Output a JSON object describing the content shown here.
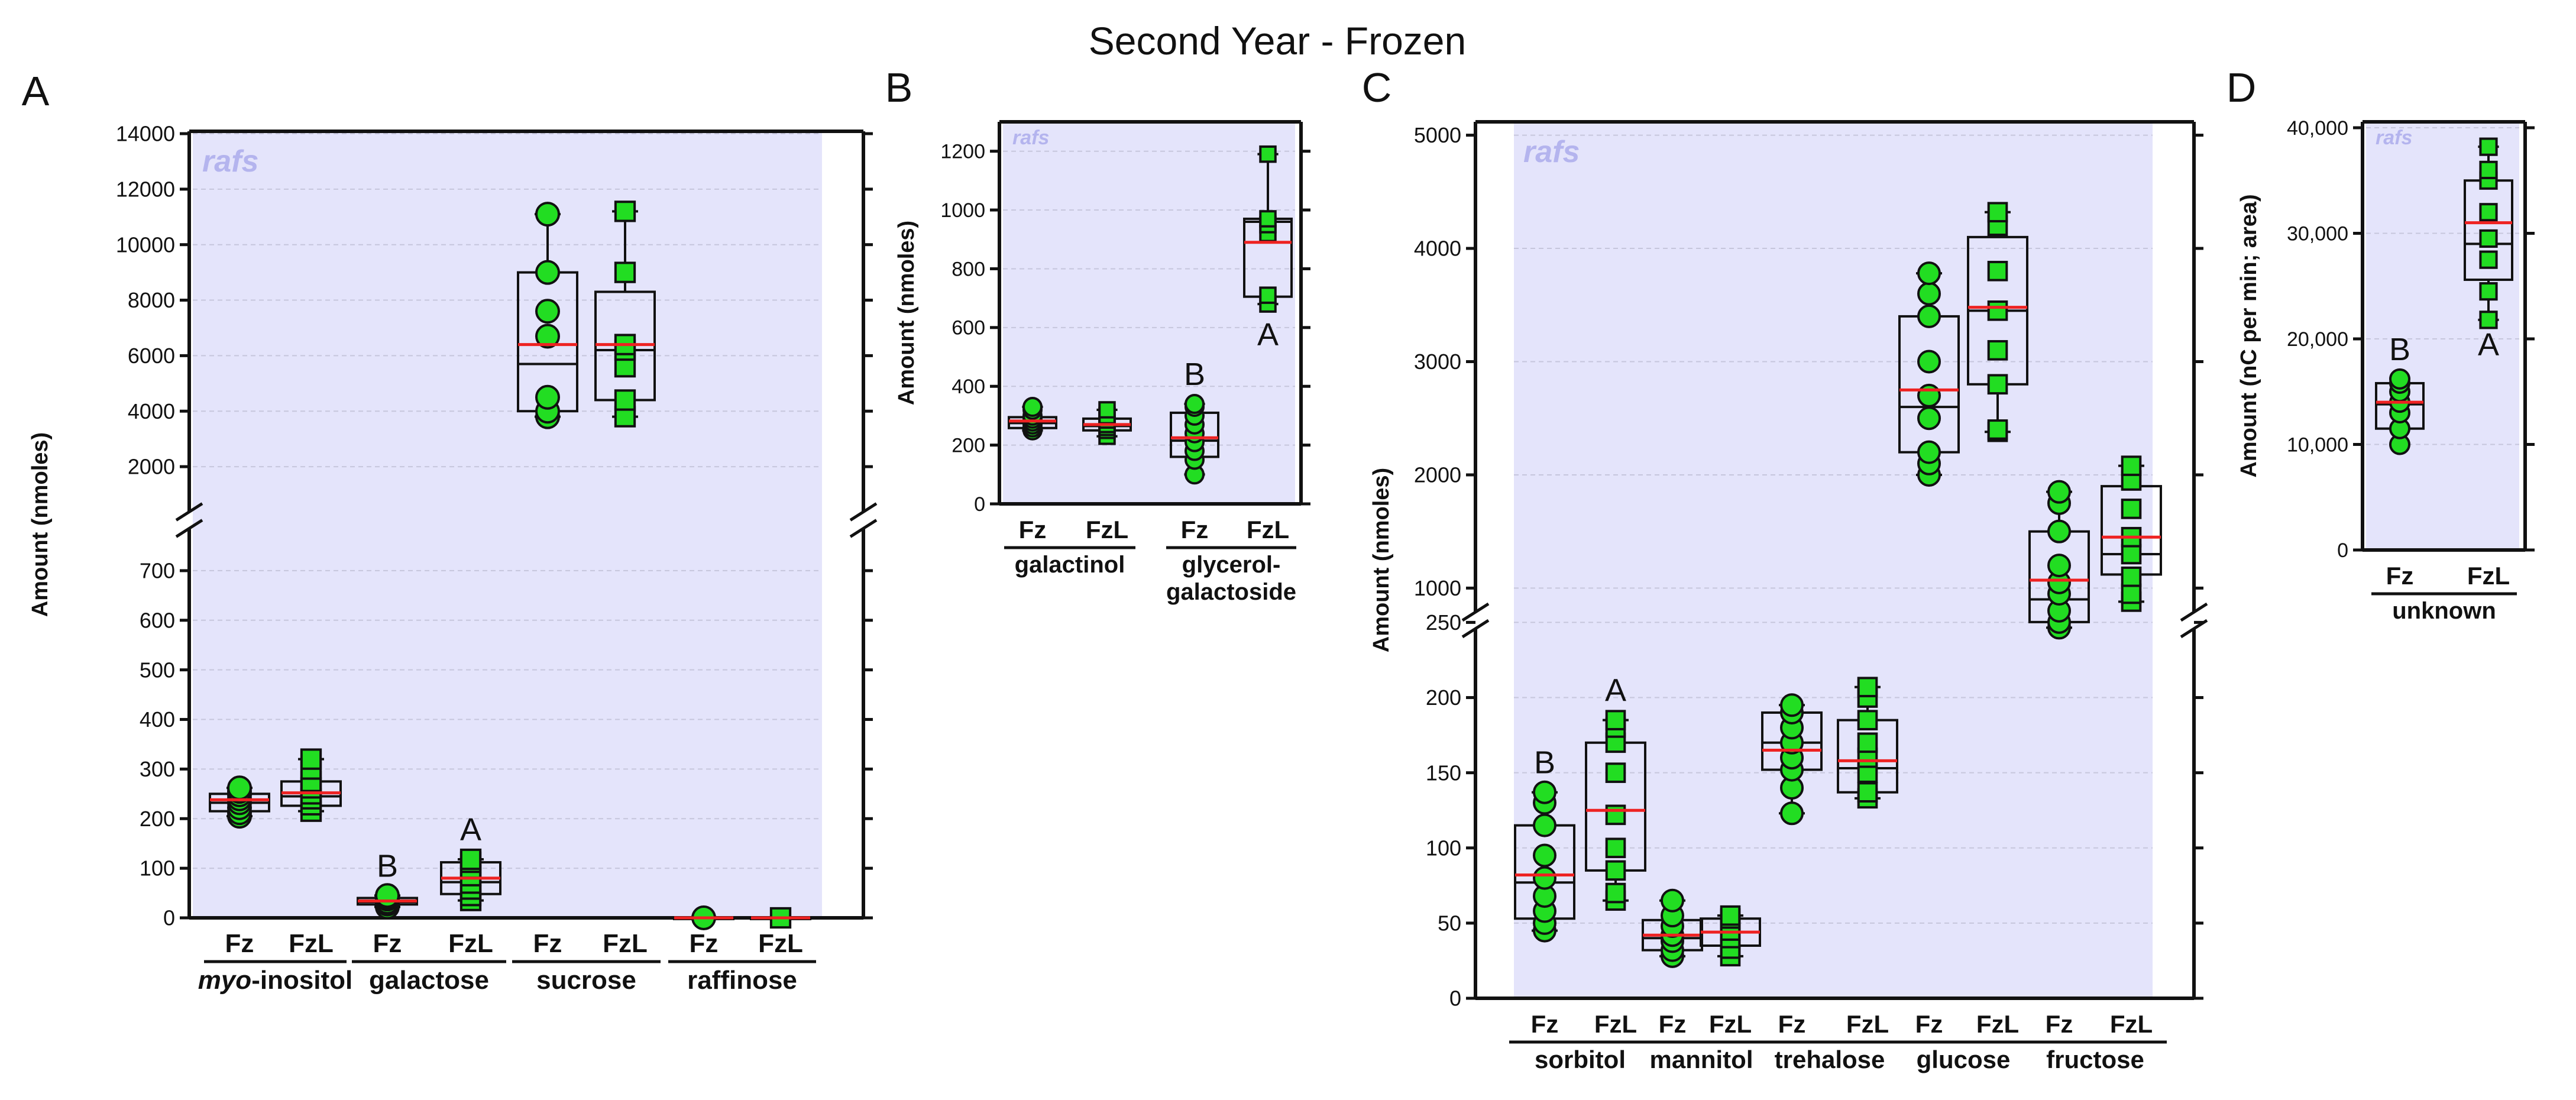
{
  "figure": {
    "title": "Second Year - Frozen",
    "watermark": "rafs",
    "colors": {
      "background": "#e4e4fb",
      "point_fill": "#22dd22",
      "point_stroke": "#111111",
      "mean_line": "#ee2222",
      "box": "#111111"
    }
  },
  "chart_data": [
    {
      "id": "A",
      "panel_label": "A",
      "type": "box",
      "ylabel": "Amount (nmoles)",
      "axis_segments": [
        {
          "range": [
            0,
            750
          ],
          "ticks": [
            0,
            100,
            200,
            300,
            400,
            500,
            600,
            700
          ]
        },
        {
          "range": [
            1000,
            14000
          ],
          "ticks": [
            2000,
            4000,
            6000,
            8000,
            10000,
            12000,
            14000
          ]
        }
      ],
      "tick_labels": [
        "0",
        "100",
        "200",
        "300",
        "400",
        "500",
        "600",
        "700",
        "2000",
        "4000",
        "6000",
        "8000",
        "10000",
        "12000",
        "14000"
      ],
      "groups": [
        {
          "label": "myo-inositol",
          "label_prefix_italic": "myo",
          "label_rest": "-inositol"
        },
        {
          "label": "galactose"
        },
        {
          "label": "sucrose"
        },
        {
          "label": "raffinose"
        }
      ],
      "categories": [
        "Fz",
        "FzL",
        "Fz",
        "FzL",
        "Fz",
        "FzL",
        "Fz",
        "FzL"
      ],
      "series": [
        {
          "name": "Fz",
          "group": 0,
          "min": 205,
          "q1": 215,
          "median": 232,
          "q3": 250,
          "max": 262,
          "mean": 238,
          "marker": "circle",
          "points": [
            205,
            212,
            222,
            232,
            240,
            248,
            255,
            262
          ]
        },
        {
          "name": "FzL",
          "group": 0,
          "min": 215,
          "q1": 226,
          "median": 245,
          "q3": 275,
          "max": 320,
          "mean": 252,
          "marker": "square",
          "points": [
            215,
            228,
            240,
            250,
            262,
            275,
            300,
            320
          ]
        },
        {
          "name": "Fz",
          "group": 1,
          "min": 22,
          "q1": 27,
          "median": 32,
          "q3": 40,
          "max": 45,
          "mean": 34,
          "marker": "circle",
          "points": [
            22,
            28,
            32,
            38,
            42,
            45
          ],
          "letter": "B"
        },
        {
          "name": "FzL",
          "group": 1,
          "min": 35,
          "q1": 48,
          "median": 72,
          "q3": 112,
          "max": 118,
          "mean": 80,
          "marker": "square",
          "points": [
            35,
            45,
            58,
            70,
            85,
            100,
            112,
            118
          ],
          "letter": "A"
        },
        {
          "name": "Fz",
          "group": 2,
          "min": 3800,
          "q1": 4000,
          "median": 5700,
          "q3": 9000,
          "max": 11100,
          "mean": 6400,
          "marker": "circle",
          "points": [
            3800,
            4000,
            4500,
            6700,
            7600,
            9000,
            11100
          ]
        },
        {
          "name": "FzL",
          "group": 2,
          "min": 3800,
          "q1": 4400,
          "median": 6200,
          "q3": 8300,
          "max": 11200,
          "mean": 6400,
          "marker": "square",
          "points": [
            3800,
            4400,
            5600,
            6200,
            6400,
            9000,
            11200
          ]
        },
        {
          "name": "Fz",
          "group": 3,
          "min": 0,
          "q1": 0,
          "median": 0,
          "q3": 0,
          "max": 0,
          "mean": 0,
          "marker": "circle",
          "points": [
            0
          ]
        },
        {
          "name": "FzL",
          "group": 3,
          "min": 0,
          "q1": 0,
          "median": 0,
          "q3": 0,
          "max": 0,
          "mean": 0,
          "marker": "square",
          "points": [
            0
          ]
        }
      ]
    },
    {
      "id": "B",
      "panel_label": "B",
      "type": "box",
      "ylabel": "Amount (nmoles)",
      "axis_segments": [
        {
          "range": [
            0,
            1300
          ],
          "ticks": [
            0,
            200,
            400,
            600,
            800,
            1000,
            1200
          ]
        }
      ],
      "tick_labels": [
        "0",
        "200",
        "400",
        "600",
        "800",
        "1000",
        "1200"
      ],
      "groups": [
        {
          "label": "galactinol"
        },
        {
          "label": "glycerol-",
          "label_line2": "galactoside"
        }
      ],
      "categories": [
        "Fz",
        "FzL",
        "Fz",
        "FzL"
      ],
      "series": [
        {
          "name": "Fz",
          "group": 0,
          "min": 250,
          "q1": 258,
          "median": 275,
          "q3": 295,
          "max": 330,
          "mean": 282,
          "marker": "circle",
          "points": [
            250,
            260,
            270,
            280,
            290,
            300,
            320,
            330
          ]
        },
        {
          "name": "FzL",
          "group": 0,
          "min": 230,
          "q1": 250,
          "median": 265,
          "q3": 290,
          "max": 320,
          "mean": 270,
          "marker": "square",
          "points": [
            230,
            250,
            260,
            270,
            285,
            300,
            320
          ]
        },
        {
          "name": "Fz",
          "group": 1,
          "min": 100,
          "q1": 160,
          "median": 215,
          "q3": 310,
          "max": 340,
          "mean": 225,
          "marker": "circle",
          "points": [
            100,
            150,
            180,
            210,
            240,
            270,
            300,
            330,
            340
          ],
          "letter": "B"
        },
        {
          "name": "FzL",
          "group": 1,
          "min": 680,
          "q1": 705,
          "median": 960,
          "q3": 970,
          "max": 1190,
          "mean": 890,
          "marker": "square",
          "points": [
            680,
            710,
            920,
            950,
            970,
            1190
          ],
          "letter": "A"
        }
      ]
    },
    {
      "id": "C",
      "panel_label": "C",
      "type": "box",
      "ylabel": "Amount (nmoles)",
      "axis_segments": [
        {
          "range": [
            0,
            260
          ],
          "ticks": [
            0,
            50,
            100,
            150,
            200,
            250
          ]
        },
        {
          "range": [
            600,
            5050
          ],
          "ticks": [
            1000,
            2000,
            3000,
            4000,
            5000
          ]
        }
      ],
      "tick_labels": [
        "0",
        "50",
        "100",
        "150",
        "200",
        "250",
        "1000",
        "2000",
        "3000",
        "4000",
        "5000"
      ],
      "groups": [
        {
          "label": "sorbitol"
        },
        {
          "label": "mannitol"
        },
        {
          "label": "trehalose"
        },
        {
          "label": "glucose"
        },
        {
          "label": "fructose"
        }
      ],
      "categories": [
        "Fz",
        "FzL",
        "Fz",
        "FzL",
        "Fz",
        "FzL",
        "Fz",
        "FzL",
        "Fz",
        "FzL"
      ],
      "series": [
        {
          "name": "Fz",
          "group": 0,
          "min": 45,
          "q1": 53,
          "median": 77,
          "q3": 115,
          "max": 137,
          "mean": 82,
          "marker": "circle",
          "points": [
            45,
            50,
            58,
            68,
            80,
            95,
            115,
            130,
            137
          ],
          "letter": "B"
        },
        {
          "name": "FzL",
          "group": 0,
          "min": 65,
          "q1": 85,
          "median": 125,
          "q3": 170,
          "max": 185,
          "mean": 125,
          "marker": "square",
          "points": [
            65,
            70,
            85,
            100,
            122,
            150,
            170,
            180,
            185
          ],
          "letter": "A"
        },
        {
          "name": "Fz",
          "group": 1,
          "min": 28,
          "q1": 32,
          "median": 40,
          "q3": 52,
          "max": 65,
          "mean": 42,
          "marker": "circle",
          "points": [
            28,
            32,
            38,
            42,
            48,
            55,
            65
          ]
        },
        {
          "name": "FzL",
          "group": 1,
          "min": 28,
          "q1": 35,
          "median": 44,
          "q3": 53,
          "max": 55,
          "mean": 44,
          "marker": "square",
          "points": [
            28,
            33,
            40,
            45,
            50,
            53,
            55
          ]
        },
        {
          "name": "Fz",
          "group": 2,
          "min": 123,
          "q1": 152,
          "median": 170,
          "q3": 190,
          "max": 195,
          "mean": 165,
          "marker": "circle",
          "points": [
            123,
            140,
            152,
            160,
            170,
            180,
            190,
            195
          ]
        },
        {
          "name": "FzL",
          "group": 2,
          "min": 133,
          "q1": 137,
          "median": 153,
          "q3": 185,
          "max": 207,
          "mean": 158,
          "marker": "square",
          "points": [
            133,
            137,
            150,
            160,
            170,
            185,
            200,
            207
          ]
        },
        {
          "name": "Fz",
          "group": 3,
          "min": 2000,
          "q1": 2200,
          "median": 2600,
          "q3": 3400,
          "max": 3780,
          "mean": 2750,
          "marker": "circle",
          "points": [
            2000,
            2100,
            2200,
            2500,
            2700,
            3000,
            3400,
            3600,
            3780
          ]
        },
        {
          "name": "FzL",
          "group": 3,
          "min": 2380,
          "q1": 2800,
          "median": 3450,
          "q3": 4100,
          "max": 4320,
          "mean": 3480,
          "marker": "square",
          "points": [
            2380,
            2400,
            2800,
            3100,
            3450,
            3800,
            4200,
            4320
          ]
        },
        {
          "name": "Fz",
          "group": 4,
          "min": 650,
          "q1": 700,
          "median": 900,
          "q3": 1500,
          "max": 1850,
          "mean": 1070,
          "marker": "circle",
          "points": [
            650,
            700,
            800,
            950,
            1050,
            1200,
            1500,
            1750,
            1850
          ]
        },
        {
          "name": "FzL",
          "group": 4,
          "min": 880,
          "q1": 1120,
          "median": 1300,
          "q3": 1900,
          "max": 2080,
          "mean": 1450,
          "marker": "square",
          "points": [
            880,
            950,
            1100,
            1300,
            1450,
            1700,
            1950,
            2080
          ]
        }
      ]
    },
    {
      "id": "D",
      "panel_label": "D",
      "type": "box",
      "ylabel": "Amount (nC per min; area)",
      "axis_segments": [
        {
          "range": [
            0,
            40000
          ],
          "ticks": [
            0,
            10000,
            20000,
            30000,
            40000
          ]
        }
      ],
      "tick_labels": [
        "0",
        "10,000",
        "20,000",
        "30,000",
        "40,000"
      ],
      "groups": [
        {
          "label": "unknown"
        }
      ],
      "categories": [
        "Fz",
        "FzL"
      ],
      "series": [
        {
          "name": "Fz",
          "group": 0,
          "min": 10000,
          "q1": 11500,
          "median": 13800,
          "q3": 15800,
          "max": 16200,
          "mean": 14000,
          "marker": "circle",
          "points": [
            10000,
            11500,
            13000,
            14000,
            15000,
            15800,
            16200
          ],
          "letter": "B"
        },
        {
          "name": "FzL",
          "group": 0,
          "min": 21800,
          "q1": 25600,
          "median": 29000,
          "q3": 35000,
          "max": 38200,
          "mean": 31000,
          "marker": "square",
          "points": [
            21800,
            24500,
            27500,
            29500,
            32000,
            35000,
            36000,
            38200
          ],
          "letter": "A"
        }
      ]
    }
  ]
}
